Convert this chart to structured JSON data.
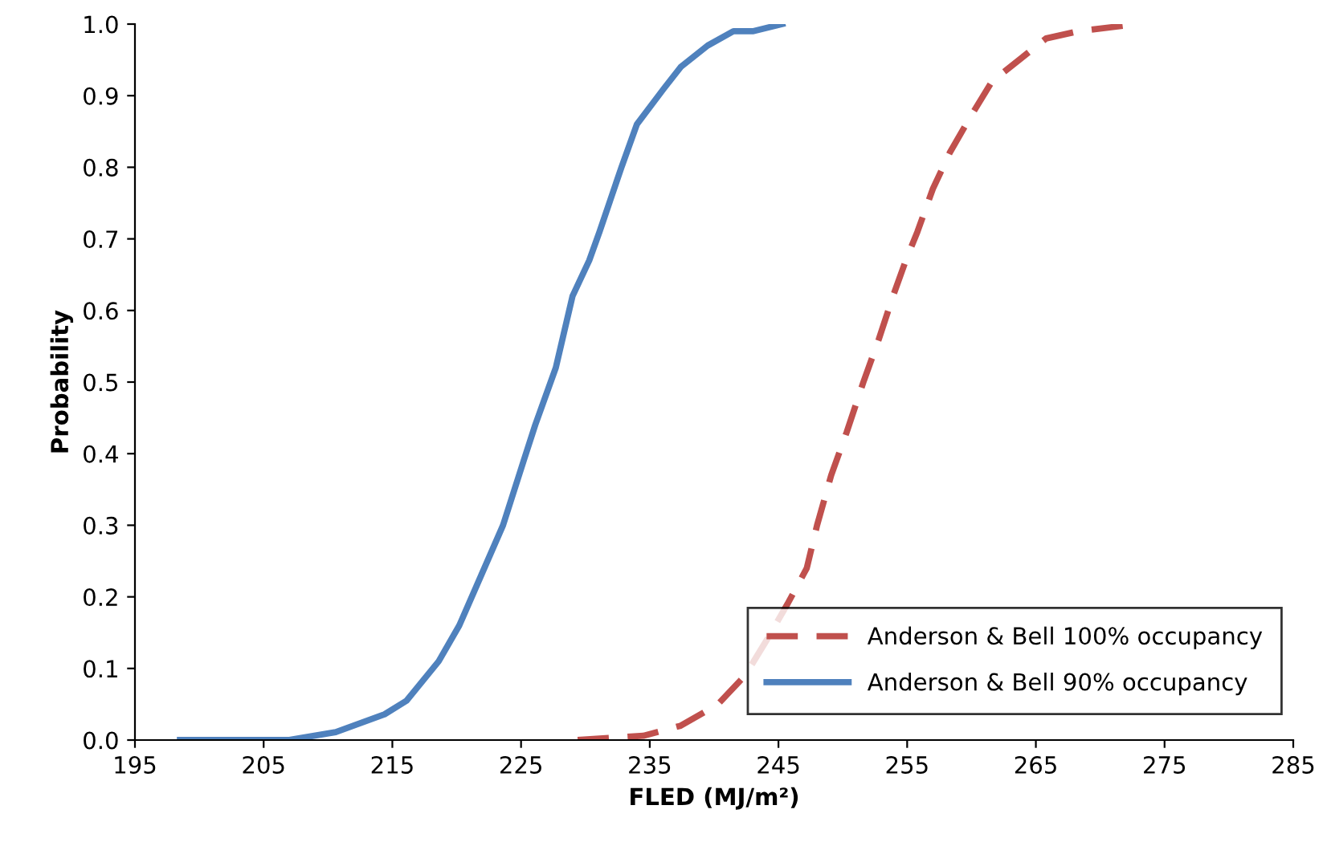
{
  "chart_data": {
    "type": "line",
    "xlabel": "FLED (MJ/m²)",
    "ylabel": "Probability",
    "xlim": [
      195,
      285
    ],
    "xticks": [
      195,
      205,
      215,
      225,
      235,
      245,
      255,
      265,
      275,
      285
    ],
    "ylim": [
      0,
      1.0
    ],
    "yticks": [
      {
        "value": 0,
        "label": "0.0"
      },
      0.1,
      0.2,
      0.3,
      0.4,
      0.5,
      0.6,
      0.7,
      0.8,
      0.9,
      {
        "value": 1.0,
        "label": "1.0"
      }
    ],
    "grid": false,
    "legend": "bottom right",
    "marker": "none",
    "series": [
      {
        "name": "Anderson & Bell 100% occupancy",
        "color": "#c0504d",
        "line_style": "dashed",
        "x": [
          229.4,
          234.5,
          237.4,
          240.3,
          242.4,
          244.1,
          245.7,
          247.2,
          248.0,
          249.1,
          250.3,
          251.6,
          252.8,
          253.9,
          254.9,
          255.8,
          257.0,
          258.3,
          259.9,
          261.6,
          263.7,
          265.8,
          268.3,
          272.9
        ],
        "values": [
          0,
          0.006,
          0.02,
          0.05,
          0.09,
          0.14,
          0.19,
          0.24,
          0.3,
          0.37,
          0.43,
          0.5,
          0.56,
          0.62,
          0.67,
          0.71,
          0.77,
          0.82,
          0.87,
          0.92,
          0.95,
          0.98,
          0.99,
          1.0
        ]
      },
      {
        "name": "Anderson & Bell 90% occupancy",
        "color": "#4f81bd",
        "line_style": "solid",
        "x": [
          198.5,
          206.9,
          210.6,
          214.4,
          216.1,
          218.6,
          220.2,
          221.9,
          223.6,
          225.2,
          226.1,
          227.7,
          229.0,
          230.3,
          231.1,
          232.8,
          234.0,
          236.1,
          237.4,
          239.5,
          241.5,
          243.0,
          245.3
        ],
        "values": [
          0,
          0,
          0.011,
          0.036,
          0.055,
          0.11,
          0.16,
          0.23,
          0.3,
          0.39,
          0.44,
          0.52,
          0.62,
          0.67,
          0.71,
          0.8,
          0.86,
          0.91,
          0.94,
          0.97,
          0.99,
          0.99,
          1.0
        ]
      }
    ]
  }
}
